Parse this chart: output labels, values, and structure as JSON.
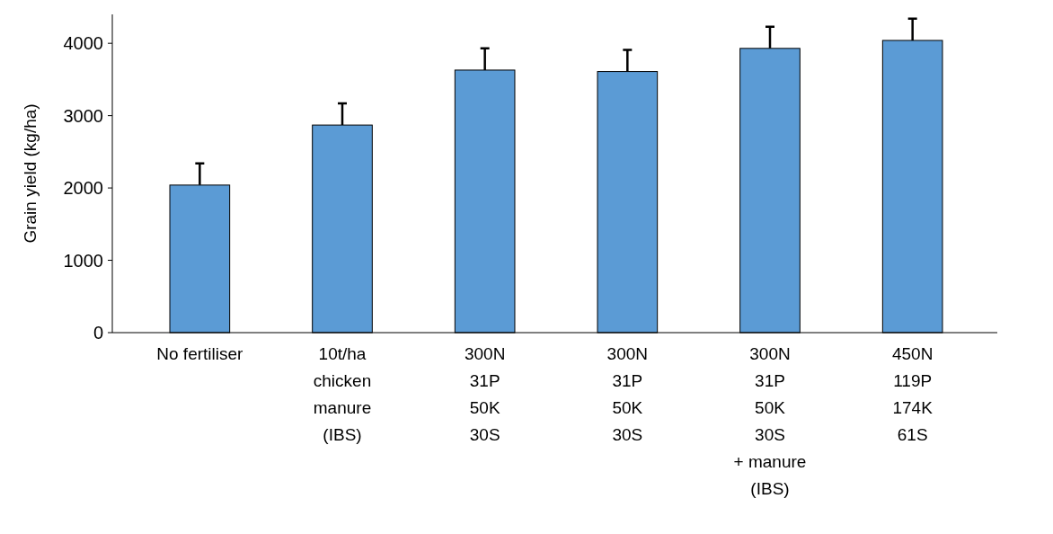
{
  "chart_data": {
    "type": "bar",
    "ylabel": "Grain yield (kg/ha)",
    "categories": [
      "No fertiliser",
      "10t/ha\nchicken\nmanure\n(IBS)",
      "300N\n31P\n50K\n30S",
      "300N\n31P\n50K\n30S",
      "300N\n31P\n50K\n30S\n+ manure\n(IBS)",
      "450N\n119P\n174K\n61S"
    ],
    "values": [
      2040,
      2870,
      3630,
      3610,
      3930,
      4040
    ],
    "errors": [
      [
        2040,
        2340
      ],
      [
        2870,
        3170
      ],
      [
        3630,
        3930
      ],
      [
        3610,
        3910
      ],
      [
        3930,
        4230
      ],
      [
        4040,
        4340
      ]
    ],
    "color": "#5b9bd5",
    "ylim": [
      0,
      4400
    ],
    "yticks": [
      0,
      1000,
      2000,
      3000,
      4000
    ],
    "grid": false
  }
}
